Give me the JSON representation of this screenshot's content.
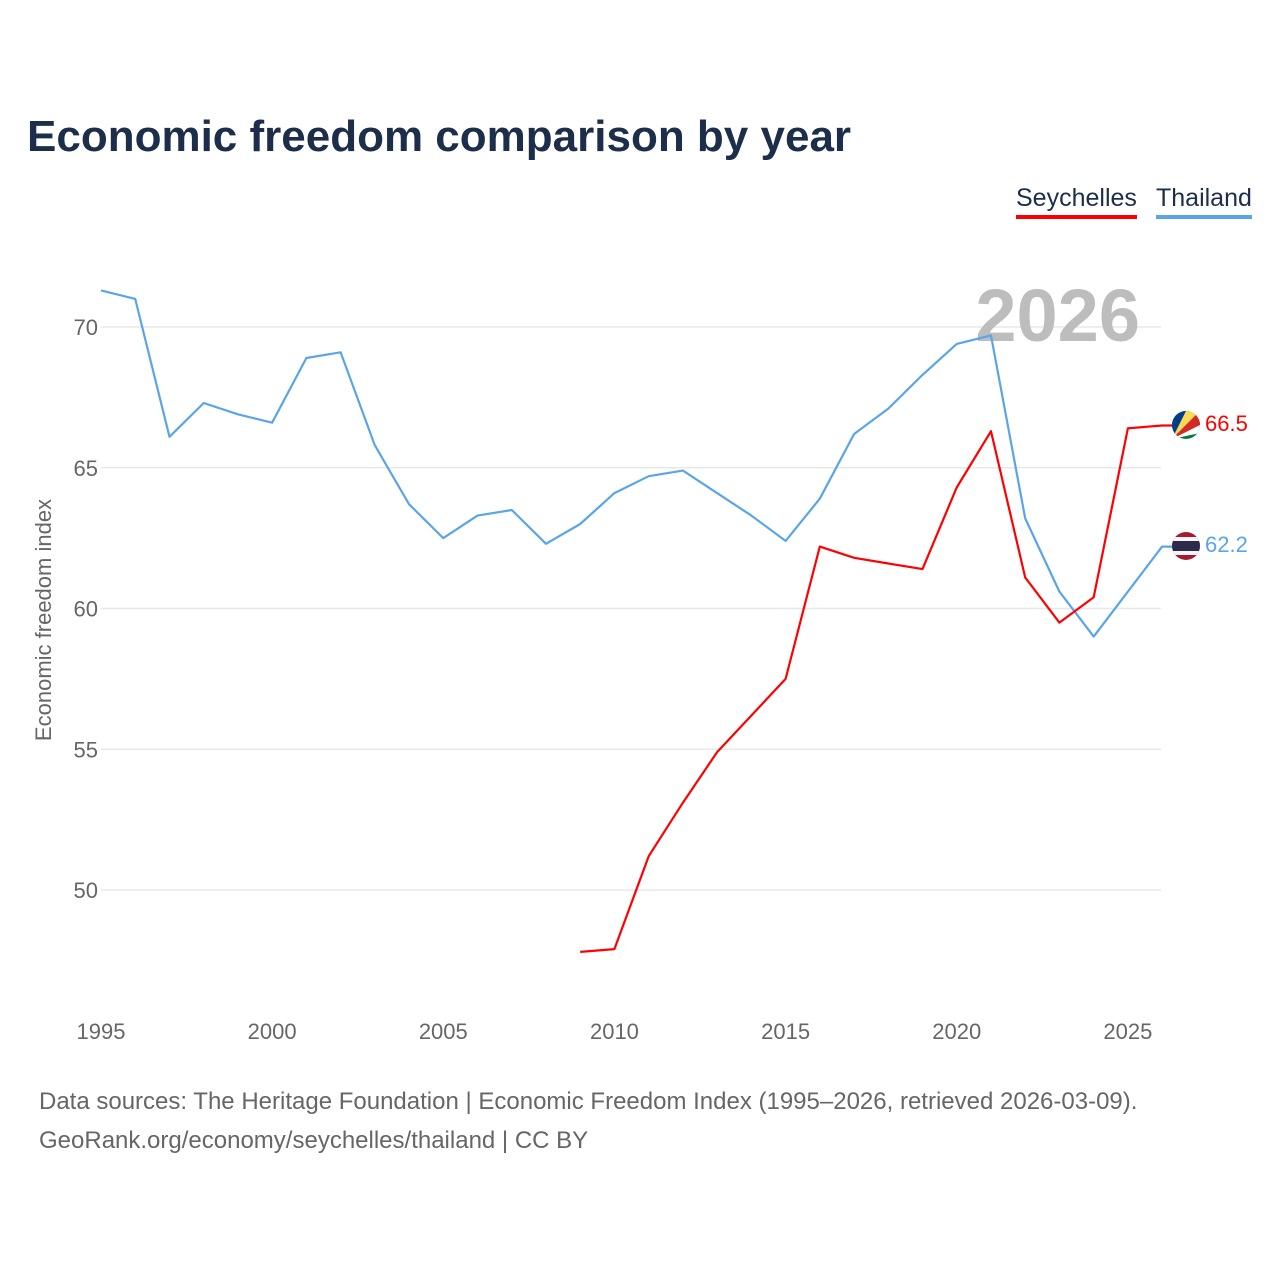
{
  "chart_data": {
    "type": "line",
    "title": "Economic freedom comparison by year",
    "xlabel": "",
    "ylabel": "Economic freedom index",
    "xlim": [
      1995,
      2026
    ],
    "ylim": [
      46,
      72
    ],
    "x_ticks": [
      1995,
      2000,
      2005,
      2010,
      2015,
      2020,
      2025
    ],
    "y_ticks": [
      50,
      55,
      60,
      65,
      70
    ],
    "grid": true,
    "legend_position": "top-right",
    "year_label": "2026",
    "series": [
      {
        "name": "Seychelles",
        "color": "#ff0000",
        "end_label": "66.5",
        "x": [
          2009,
          2010,
          2011,
          2012,
          2013,
          2014,
          2015,
          2016,
          2017,
          2018,
          2019,
          2020,
          2021,
          2022,
          2023,
          2024,
          2025,
          2026
        ],
        "values": [
          47.8,
          47.9,
          51.2,
          53.1,
          54.9,
          56.2,
          57.5,
          62.2,
          61.8,
          61.6,
          61.4,
          64.3,
          66.3,
          61.1,
          59.5,
          60.4,
          66.4,
          66.5
        ]
      },
      {
        "name": "Thailand",
        "color": "#5aa5e8",
        "end_label": "62.2",
        "x": [
          1995,
          1996,
          1997,
          1998,
          1999,
          2000,
          2001,
          2002,
          2003,
          2004,
          2005,
          2006,
          2007,
          2008,
          2009,
          2010,
          2011,
          2012,
          2013,
          2014,
          2015,
          2016,
          2017,
          2018,
          2019,
          2020,
          2021,
          2022,
          2023,
          2024,
          2025,
          2026
        ],
        "values": [
          71.3,
          71.0,
          66.1,
          67.3,
          66.9,
          66.6,
          68.9,
          69.1,
          65.8,
          63.7,
          62.5,
          63.3,
          63.5,
          62.3,
          63.0,
          64.1,
          64.7,
          64.9,
          64.1,
          63.3,
          62.4,
          63.9,
          66.2,
          67.1,
          68.3,
          69.4,
          69.7,
          63.2,
          60.6,
          59.0,
          60.6,
          62.2
        ]
      }
    ]
  },
  "footer": {
    "line1": "Data sources: The Heritage Foundation | Economic Freedom Index (1995–2026, retrieved 2026-03-09).",
    "line2": "GeoRank.org/economy/seychelles/thailand | CC BY"
  }
}
